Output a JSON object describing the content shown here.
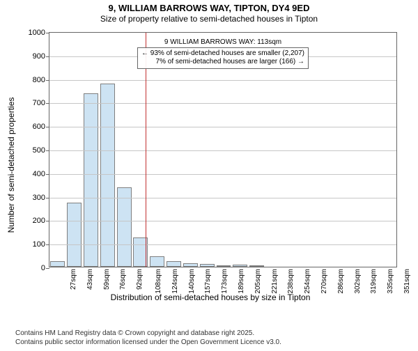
{
  "title": "9, WILLIAM BARROWS WAY, TIPTON, DY4 9ED",
  "subtitle": "Size of property relative to semi-detached houses in Tipton",
  "ylabel": "Number of semi-detached properties",
  "xlabel": "Distribution of semi-detached houses by size in Tipton",
  "ylim": [
    0,
    1000
  ],
  "ytick_step": 100,
  "label_fontsize": 12,
  "tick_fontsize": 11,
  "xtick_fontsize": 10,
  "background_color": "#ffffff",
  "border_color": "#666666",
  "grid_color": "#c6c6c6",
  "bar_fill": "#cde3f3",
  "bar_border": "#7f7f7f",
  "reference_line_color": "#c23030",
  "callout": {
    "line1": "9 WILLIAM BARROWS WAY: 113sqm",
    "line2": "← 93% of semi-detached houses are smaller (2,207)",
    "line3": "7% of semi-detached houses are larger (166) →",
    "box_border": "#666666"
  },
  "attribution": {
    "line1": "Contains HM Land Registry data © Crown copyright and database right 2025.",
    "line2": "Contains public sector information licensed under the Open Government Licence v3.0."
  },
  "reference_value_sqm": 113,
  "x_min": 20,
  "x_tick_labels": [
    "27sqm",
    "43sqm",
    "59sqm",
    "76sqm",
    "92sqm",
    "108sqm",
    "124sqm",
    "140sqm",
    "157sqm",
    "173sqm",
    "189sqm",
    "205sqm",
    "221sqm",
    "238sqm",
    "254sqm",
    "270sqm",
    "286sqm",
    "302sqm",
    "319sqm",
    "335sqm",
    "351sqm"
  ],
  "bars": [
    25,
    272,
    737,
    778,
    338,
    124,
    45,
    25,
    14,
    12,
    5,
    10,
    1,
    0,
    0,
    0,
    0,
    0,
    0,
    0,
    0
  ]
}
